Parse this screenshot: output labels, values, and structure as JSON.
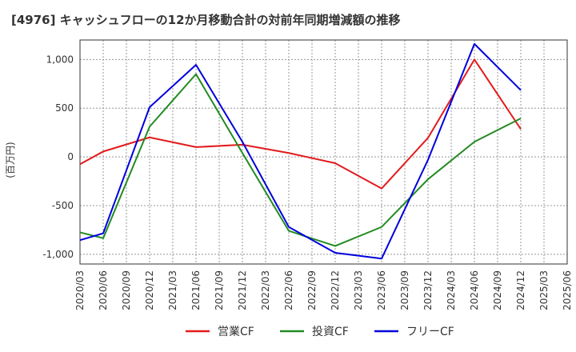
{
  "chart_data": {
    "type": "line",
    "title": "[4976]  キャッシュフローの12か月移動合計の対前年同期増減額の推移",
    "ylabel": "(百万円)",
    "xlabel": "",
    "ylim": [
      -1100,
      1200
    ],
    "yticks": [
      1000,
      500,
      0,
      -500,
      -1000
    ],
    "ytick_labels": [
      "1,000",
      "500",
      "0",
      "-500",
      "-1,000"
    ],
    "x_tick_labels": [
      "2020/03",
      "2020/06",
      "2020/09",
      "2020/12",
      "2021/03",
      "2021/06",
      "2021/09",
      "2021/12",
      "2022/03",
      "2022/06",
      "2022/09",
      "2022/12",
      "2023/03",
      "2023/06",
      "2023/09",
      "2023/12",
      "2024/03",
      "2024/06",
      "2024/09",
      "2024/12",
      "2025/03",
      "2025/06"
    ],
    "grid": true,
    "legend_position": "bottom",
    "series": [
      {
        "name": "営業CF",
        "color": "#e31a1c",
        "x": [
          "2020/03",
          "2020/06",
          "2020/12",
          "2021/06",
          "2021/12",
          "2022/06",
          "2022/12",
          "2023/06",
          "2023/12",
          "2024/06",
          "2024/12"
        ],
        "values": [
          -75,
          55,
          200,
          100,
          125,
          40,
          -65,
          -325,
          195,
          1000,
          285
        ]
      },
      {
        "name": "投資CF",
        "color": "#228b22",
        "x": [
          "2020/03",
          "2020/06",
          "2020/12",
          "2021/06",
          "2021/12",
          "2022/06",
          "2022/12",
          "2023/06",
          "2023/12",
          "2024/06",
          "2024/12"
        ],
        "values": [
          -775,
          -835,
          310,
          850,
          40,
          -760,
          -915,
          -720,
          -230,
          155,
          395
        ]
      },
      {
        "name": "フリーCF",
        "color": "#0000dd",
        "x": [
          "2020/03",
          "2020/06",
          "2020/12",
          "2021/06",
          "2021/12",
          "2022/06",
          "2022/12",
          "2023/06",
          "2023/12",
          "2024/06",
          "2024/12"
        ],
        "values": [
          -855,
          -785,
          510,
          945,
          155,
          -720,
          -985,
          -1045,
          -30,
          1160,
          685
        ]
      }
    ]
  }
}
